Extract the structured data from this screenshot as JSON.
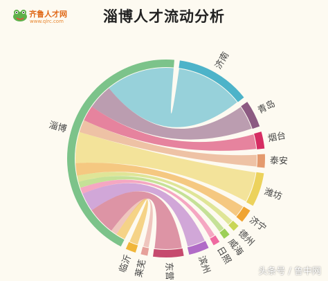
{
  "logo": {
    "brand": "齐鲁人才网",
    "url": "www.qlrc.com"
  },
  "watermark": "头条号 / 鲁中网",
  "chart_data": {
    "type": "chord",
    "title": "淄博人才流动分析",
    "source": "淄博",
    "source_color": "#7cc38a",
    "cities": [
      {
        "name": "济南",
        "value": 22,
        "color": "#4db3c9"
      },
      {
        "name": "青岛",
        "value": 8,
        "color": "#8c5a82"
      },
      {
        "name": "烟台",
        "value": 5,
        "color": "#d62d63"
      },
      {
        "name": "泰安",
        "value": 4,
        "color": "#e49a6e"
      },
      {
        "name": "潍坊",
        "value": 10,
        "color": "#ecd25c"
      },
      {
        "name": "济宁",
        "value": 4,
        "color": "#f0a431"
      },
      {
        "name": "德州",
        "value": 2,
        "color": "#c9d656"
      },
      {
        "name": "威海",
        "value": 2,
        "color": "#9ccf56"
      },
      {
        "name": "日照",
        "value": 2,
        "color": "#ef6aa1"
      },
      {
        "name": "滨州",
        "value": 6,
        "color": "#b16bc7"
      },
      {
        "name": "东营",
        "value": 9,
        "color": "#c64a6e"
      },
      {
        "name": "莱芜",
        "value": 2,
        "color": "#e6a09a"
      },
      {
        "name": "临沂",
        "value": 3,
        "color": "#f0b63a"
      }
    ]
  }
}
